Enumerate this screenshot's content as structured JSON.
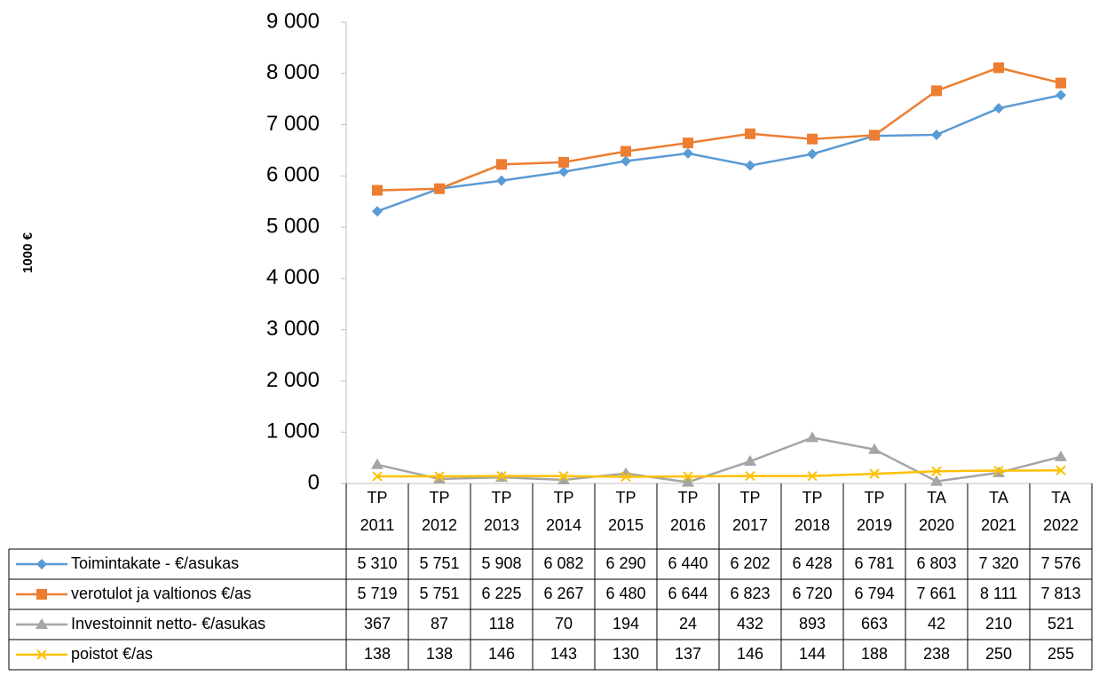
{
  "chart_data": {
    "type": "line",
    "y_label": "1000 €",
    "categories": [
      "TP 2011",
      "TP 2012",
      "TP 2013",
      "TP 2014",
      "TP 2015",
      "TP 2016",
      "TP 2017",
      "TP 2018",
      "TP 2019",
      "TA 2020",
      "TA 2021",
      "TA 2022"
    ],
    "ylim": [
      0,
      9000
    ],
    "yticks": [
      0,
      {
        "value": 1000,
        "label": "1 000"
      },
      {
        "value": 2000,
        "label": "2 000"
      },
      {
        "value": 3000,
        "label": "3 000"
      },
      {
        "value": 4000,
        "label": "4 000"
      },
      {
        "value": 5000,
        "label": "5 000"
      },
      {
        "value": 6000,
        "label": "6 000"
      },
      {
        "value": 7000,
        "label": "7 000"
      },
      {
        "value": 8000,
        "label": "8 000"
      },
      {
        "value": 9000,
        "label": "9 000"
      }
    ],
    "series": [
      {
        "name": "Toimintakate - €/asukas",
        "color": "#5b9bd5",
        "marker": "diamond",
        "values": [
          5310,
          5751,
          5908,
          6082,
          6290,
          6440,
          6202,
          6428,
          6781,
          6803,
          7320,
          7576
        ],
        "value_labels": [
          "5 310",
          "5 751",
          "5 908",
          "6 082",
          "6 290",
          "6 440",
          "6 202",
          "6 428",
          "6 781",
          "6 803",
          "7 320",
          "7 576"
        ]
      },
      {
        "name": "verotulot ja valtionos €/as",
        "color": "#ed7d31",
        "marker": "square",
        "values": [
          5719,
          5751,
          6225,
          6267,
          6480,
          6644,
          6823,
          6720,
          6794,
          7661,
          8111,
          7813
        ],
        "value_labels": [
          "5 719",
          "5 751",
          "6 225",
          "6 267",
          "6 480",
          "6 644",
          "6 823",
          "6 720",
          "6 794",
          "7 661",
          "8 111",
          "7 813"
        ]
      },
      {
        "name": "Investoinnit netto- €/asukas",
        "color": "#a5a5a5",
        "marker": "triangle",
        "values": [
          367,
          87,
          118,
          70,
          194,
          24,
          432,
          893,
          663,
          42,
          210,
          521
        ]
      },
      {
        "name": "poistot €/as",
        "color": "#ffc000",
        "marker": "x",
        "values": [
          138,
          138,
          146,
          143,
          130,
          137,
          146,
          144,
          188,
          238,
          250,
          255
        ]
      }
    ]
  }
}
